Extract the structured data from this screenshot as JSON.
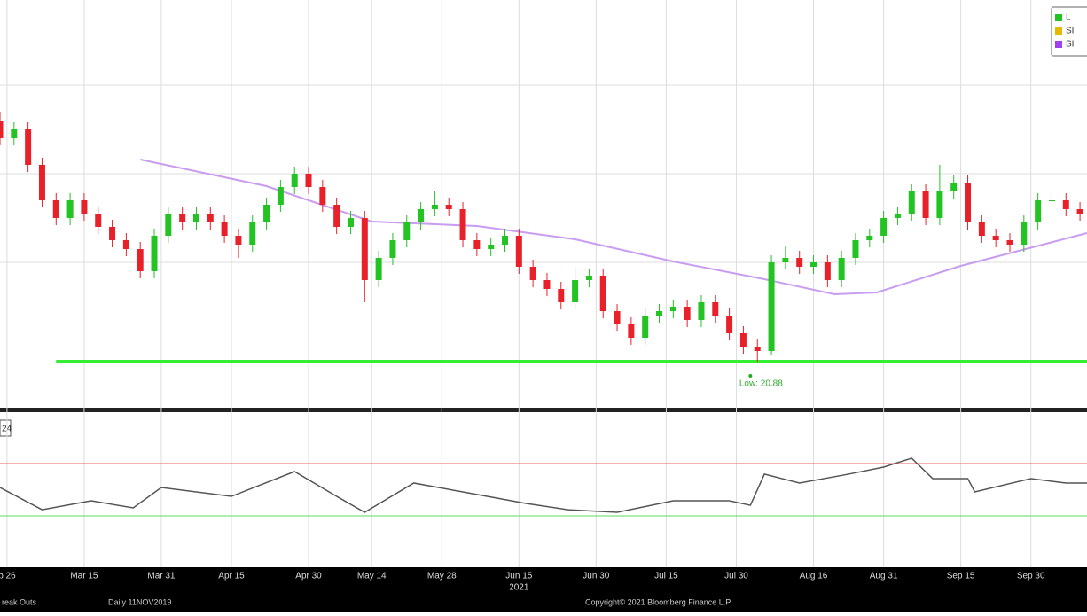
{
  "chart_data": [
    {
      "type": "candlestick",
      "xlim": [
        0,
        155
      ],
      "ylim": [
        20.36,
        24.96
      ],
      "yticks": [
        22,
        23,
        24
      ],
      "grid": true,
      "up_color": "#22c322",
      "down_color": "#e8202a",
      "xticks": [
        {
          "value": 1,
          "label": "b 26"
        },
        {
          "value": 12,
          "label": "Mar 15"
        },
        {
          "value": 23,
          "label": "Mar 31"
        },
        {
          "value": 33,
          "label": "Apr 15"
        },
        {
          "value": 44,
          "label": "Apr 30"
        },
        {
          "value": 53,
          "label": "May 14"
        },
        {
          "value": 63,
          "label": "May 28"
        },
        {
          "value": 74,
          "label": "Jun 15"
        },
        {
          "value": 85,
          "label": "Jun 30"
        },
        {
          "value": 95,
          "label": "Jul 15"
        },
        {
          "value": 105,
          "label": "Jul 30"
        },
        {
          "value": 116,
          "label": "Aug 16"
        },
        {
          "value": 126,
          "label": "Aug 31"
        },
        {
          "value": 137,
          "label": "Sep 15"
        },
        {
          "value": 147,
          "label": "Sep 30"
        }
      ],
      "year_tick": {
        "value": 74,
        "label": "2021"
      },
      "x": [
        0,
        2,
        4,
        6,
        8,
        10,
        12,
        14,
        16,
        18,
        20,
        22,
        24,
        26,
        28,
        30,
        32,
        34,
        36,
        38,
        40,
        42,
        44,
        46,
        48,
        50,
        52,
        54,
        56,
        58,
        60,
        62,
        64,
        66,
        68,
        70,
        72,
        74,
        76,
        78,
        80,
        82,
        84,
        86,
        88,
        90,
        92,
        94,
        96,
        98,
        100,
        102,
        104,
        106,
        108,
        110,
        112,
        114,
        116,
        118,
        120,
        122,
        124,
        126,
        128,
        130,
        132,
        134,
        136,
        138,
        140,
        142,
        144,
        146,
        148,
        150,
        152,
        154
      ],
      "open": [
        23.6,
        23.4,
        23.5,
        23.1,
        22.7,
        22.5,
        22.7,
        22.55,
        22.4,
        22.25,
        22.15,
        21.9,
        22.3,
        22.55,
        22.45,
        22.55,
        22.45,
        22.3,
        22.2,
        22.45,
        22.65,
        22.85,
        23.0,
        22.85,
        22.65,
        22.4,
        22.5,
        21.8,
        22.05,
        22.25,
        22.45,
        22.6,
        22.65,
        22.6,
        22.25,
        22.15,
        22.2,
        22.3,
        21.95,
        21.8,
        21.7,
        21.55,
        21.8,
        21.85,
        21.45,
        21.3,
        21.15,
        21.4,
        21.45,
        21.5,
        21.35,
        21.55,
        21.4,
        21.2,
        21.05,
        21.0,
        22.0,
        22.05,
        21.95,
        22.0,
        21.8,
        22.05,
        22.25,
        22.3,
        22.5,
        22.55,
        22.8,
        22.5,
        22.8,
        22.9,
        22.45,
        22.3,
        22.25,
        22.2,
        22.45,
        22.7,
        22.7,
        22.6
      ],
      "high": [
        23.7,
        23.58,
        23.58,
        23.18,
        22.78,
        22.78,
        22.78,
        22.63,
        22.48,
        22.33,
        22.23,
        22.38,
        22.63,
        22.63,
        22.63,
        22.63,
        22.53,
        22.38,
        22.53,
        22.73,
        22.93,
        23.08,
        23.08,
        22.93,
        22.73,
        22.58,
        22.58,
        22.13,
        22.33,
        22.53,
        22.68,
        22.8,
        22.73,
        22.68,
        22.33,
        22.28,
        22.38,
        22.38,
        22.03,
        21.88,
        21.78,
        21.95,
        21.93,
        21.93,
        21.53,
        21.38,
        21.48,
        21.53,
        21.58,
        21.58,
        21.63,
        21.63,
        21.48,
        21.28,
        21.13,
        22.08,
        22.18,
        22.13,
        22.08,
        22.08,
        22.13,
        22.33,
        22.38,
        22.58,
        22.63,
        22.88,
        22.88,
        23.1,
        22.98,
        22.98,
        22.53,
        22.38,
        22.33,
        22.53,
        22.78,
        22.78,
        22.78,
        22.68
      ],
      "low": [
        23.32,
        23.32,
        23.02,
        22.62,
        22.42,
        22.42,
        22.47,
        22.32,
        22.17,
        22.07,
        21.82,
        21.82,
        22.22,
        22.37,
        22.37,
        22.37,
        22.22,
        22.05,
        22.12,
        22.37,
        22.57,
        22.77,
        22.77,
        22.57,
        22.32,
        22.32,
        21.55,
        21.72,
        21.97,
        22.17,
        22.37,
        22.52,
        22.52,
        22.17,
        22.07,
        22.07,
        22.12,
        21.87,
        21.72,
        21.62,
        21.47,
        21.47,
        21.72,
        21.37,
        21.22,
        21.07,
        21.07,
        21.32,
        21.37,
        21.27,
        21.27,
        21.32,
        21.12,
        20.97,
        20.88,
        20.95,
        21.92,
        21.87,
        21.87,
        21.72,
        21.72,
        21.97,
        22.17,
        22.22,
        22.42,
        22.47,
        22.42,
        22.42,
        22.72,
        22.37,
        22.22,
        22.17,
        22.12,
        22.12,
        22.37,
        22.62,
        22.52,
        22.47
      ],
      "close": [
        23.4,
        23.5,
        23.1,
        22.7,
        22.5,
        22.7,
        22.55,
        22.4,
        22.25,
        22.15,
        21.9,
        22.3,
        22.55,
        22.45,
        22.55,
        22.45,
        22.3,
        22.2,
        22.45,
        22.65,
        22.85,
        23.0,
        22.85,
        22.65,
        22.4,
        22.5,
        21.8,
        22.05,
        22.25,
        22.45,
        22.6,
        22.65,
        22.6,
        22.25,
        22.15,
        22.2,
        22.3,
        21.95,
        21.8,
        21.7,
        21.55,
        21.8,
        21.85,
        21.45,
        21.3,
        21.15,
        21.4,
        21.45,
        21.5,
        21.35,
        21.55,
        21.4,
        21.2,
        21.05,
        21.0,
        22.0,
        22.05,
        21.95,
        22.0,
        21.8,
        22.05,
        22.25,
        22.3,
        22.5,
        22.55,
        22.8,
        22.5,
        22.8,
        22.9,
        22.45,
        22.3,
        22.25,
        22.2,
        22.45,
        22.7,
        22.7,
        22.6,
        22.55
      ],
      "series": [
        {
          "color": "#c89cf0",
          "x": [
            20,
            38,
            53,
            68,
            82,
            96,
            109,
            119,
            125,
            137,
            155
          ],
          "values": [
            23.16,
            22.86,
            22.46,
            22.41,
            22.26,
            22.01,
            21.81,
            21.64,
            21.66,
            21.96,
            22.33
          ]
        }
      ],
      "support": {
        "x": [
          8,
          155
        ],
        "value": 20.88,
        "color": "#33ee33"
      },
      "annotation": {
        "x": 107,
        "value": 20.88,
        "text": "Low: 20.88"
      },
      "legend": [
        {
          "name": "L",
          "color": "#22c322"
        },
        {
          "name": "SI",
          "color": "#e6b800"
        },
        {
          "name": "SI",
          "color": "#a040f0"
        }
      ]
    },
    {
      "type": "line",
      "label": "24",
      "xlim": [
        0,
        155
      ],
      "ylim": [
        -9.3,
        109.3
      ],
      "color": "#555555",
      "hlines": [
        {
          "value": 70,
          "color": "#f08080"
        },
        {
          "value": 30,
          "color": "#80e080"
        }
      ],
      "x": [
        0,
        6,
        13,
        19,
        23,
        33,
        42,
        48,
        52,
        59,
        66,
        75,
        81,
        88,
        96,
        104,
        107,
        109,
        114,
        121,
        126,
        130,
        133,
        138,
        139,
        147,
        152,
        155
      ],
      "values": [
        51.7,
        34.7,
        41.5,
        36.1,
        51.7,
        44.9,
        63.9,
        44.9,
        32.7,
        55.1,
        48.3,
        39.5,
        34.7,
        32.7,
        41.5,
        41.5,
        38.1,
        61.9,
        55.1,
        61.9,
        67.3,
        74.1,
        58.5,
        58.5,
        48.3,
        58.5,
        55.1,
        55.1
      ]
    }
  ],
  "footer": [
    "reak Outs",
    "Daily 11NOV2019",
    "Copyright© 2021 Bloomberg Finance L.P."
  ]
}
